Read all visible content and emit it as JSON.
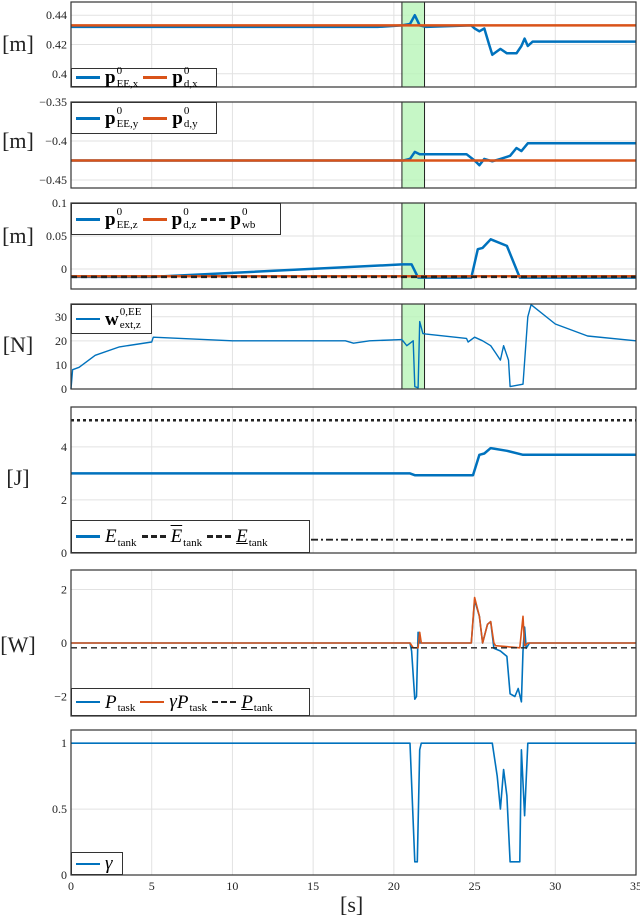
{
  "chart_data": {
    "type": "line",
    "xlabel": "[s]",
    "xlim": [
      0,
      35
    ],
    "xticks": [
      0,
      5,
      10,
      15,
      20,
      25,
      30,
      35
    ],
    "grid": true,
    "highlight_interval": [
      20.5,
      21.9
    ],
    "highlight_color": "#b8f5b8",
    "colors": {
      "blue": "#0072BD",
      "red": "#D95319",
      "black": "#222222"
    },
    "panels": [
      {
        "ylabel": "[m]",
        "ylim": [
          0.391,
          0.449
        ],
        "yticks": [
          0.4,
          0.42,
          0.44
        ],
        "ytick_labels": [
          "0.4",
          "0.42",
          "0.44"
        ],
        "highlight": true,
        "legend_placement": "bottom-left",
        "series": [
          {
            "sym": "p",
            "sup": "0",
            "sub": "EE,x",
            "style": "bold",
            "color": "#0072BD",
            "dash": "solid",
            "width": 2.5,
            "points": [
              [
                0,
                0.432
              ],
              [
                19,
                0.432
              ],
              [
                20.5,
                0.433
              ],
              [
                21,
                0.434
              ],
              [
                21.3,
                0.44
              ],
              [
                21.6,
                0.433
              ],
              [
                22,
                0.432
              ],
              [
                24.8,
                0.433
              ],
              [
                25,
                0.431
              ],
              [
                25.3,
                0.429
              ],
              [
                25.6,
                0.431
              ],
              [
                25.9,
                0.42
              ],
              [
                26.1,
                0.413
              ],
              [
                26.6,
                0.417
              ],
              [
                27,
                0.414
              ],
              [
                27.6,
                0.414
              ],
              [
                27.9,
                0.419
              ],
              [
                28.1,
                0.424
              ],
              [
                28.3,
                0.419
              ],
              [
                28.6,
                0.422
              ],
              [
                35,
                0.422
              ]
            ]
          },
          {
            "sym": "p",
            "sup": "0",
            "sub": "d,x",
            "style": "bold",
            "color": "#D95319",
            "dash": "solid",
            "width": 2.5,
            "points": [
              [
                0,
                0.433
              ],
              [
                35,
                0.433
              ]
            ]
          }
        ]
      },
      {
        "ylabel": "[m]",
        "ylim": [
          -0.4603,
          -0.35
        ],
        "yticks": [
          -0.45,
          -0.4,
          -0.35
        ],
        "ytick_labels": [
          "−0.45",
          "−0.4",
          "−0.35"
        ],
        "highlight": true,
        "legend_placement": "top-left",
        "series": [
          {
            "sym": "p",
            "sup": "0",
            "sub": "EE,y",
            "style": "bold",
            "color": "#0072BD",
            "dash": "solid",
            "width": 2.5,
            "points": [
              [
                0,
                -0.425
              ],
              [
                20.6,
                -0.425
              ],
              [
                21,
                -0.423
              ],
              [
                21.3,
                -0.414
              ],
              [
                21.6,
                -0.417
              ],
              [
                24.5,
                -0.417
              ],
              [
                25,
                -0.425
              ],
              [
                25.3,
                -0.431
              ],
              [
                25.6,
                -0.423
              ],
              [
                26.1,
                -0.426
              ],
              [
                26.6,
                -0.423
              ],
              [
                27.2,
                -0.419
              ],
              [
                27.6,
                -0.409
              ],
              [
                27.9,
                -0.413
              ],
              [
                28.3,
                -0.403
              ],
              [
                35,
                -0.403
              ]
            ]
          },
          {
            "sym": "p",
            "sup": "0",
            "sub": "d,y",
            "style": "bold",
            "color": "#D95319",
            "dash": "solid",
            "width": 2.5,
            "points": [
              [
                0,
                -0.425
              ],
              [
                35,
                -0.425
              ]
            ]
          }
        ]
      },
      {
        "ylabel": "[m]",
        "ylim": [
          -0.0303,
          0.1
        ],
        "yticks": [
          0,
          0.05,
          0.1
        ],
        "ytick_labels": [
          "0",
          "0.05",
          "0.1"
        ],
        "highlight": true,
        "legend_placement": "top-left",
        "series": [
          {
            "sym": "p",
            "sup": "0",
            "sub": "EE,z",
            "style": "bold",
            "color": "#0072BD",
            "dash": "solid",
            "width": 2.5,
            "points": [
              [
                0,
                -0.012
              ],
              [
                5,
                -0.012
              ],
              [
                20.5,
                0.007
              ],
              [
                21.1,
                0.007
              ],
              [
                21.5,
                -0.013
              ],
              [
                24.8,
                -0.013
              ],
              [
                25.2,
                0.03
              ],
              [
                25.5,
                0.032
              ],
              [
                26,
                0.045
              ],
              [
                27,
                0.035
              ],
              [
                27.8,
                -0.013
              ],
              [
                35,
                -0.013
              ]
            ]
          },
          {
            "sym": "p",
            "sup": "0",
            "sub": "d,z",
            "style": "bold",
            "color": "#D95319",
            "dash": "solid",
            "width": 2.5,
            "points": [
              [
                0,
                -0.011
              ],
              [
                35,
                -0.011
              ]
            ]
          },
          {
            "sym": "p",
            "sup": "0",
            "sub": "wb",
            "style": "bold",
            "color": "#222222",
            "dash": "dashed",
            "width": 2.5,
            "points": [
              [
                0,
                -0.012
              ],
              [
                35,
                -0.012
              ]
            ]
          }
        ]
      },
      {
        "ylabel": "[N]",
        "ylim": [
          0,
          35.3
        ],
        "yticks": [
          0,
          10,
          20,
          30
        ],
        "ytick_labels": [
          "0",
          "10",
          "20",
          "30"
        ],
        "highlight": true,
        "legend_placement": "top-left",
        "series": [
          {
            "sym": "w",
            "sup": "0,EE",
            "sub": "ext,z",
            "style": "bold",
            "color": "#0072BD",
            "dash": "solid",
            "width": 1.4,
            "points": [
              [
                0,
                0
              ],
              [
                0.1,
                8
              ],
              [
                0.5,
                9
              ],
              [
                1.5,
                14
              ],
              [
                3,
                17.5
              ],
              [
                5,
                19.5
              ],
              [
                5.1,
                21.5
              ],
              [
                10,
                20
              ],
              [
                17,
                20
              ],
              [
                17.5,
                19
              ],
              [
                18.5,
                20
              ],
              [
                20.5,
                20.5
              ],
              [
                20.8,
                18
              ],
              [
                21.2,
                20
              ],
              [
                21.3,
                1
              ],
              [
                21.5,
                0.5
              ],
              [
                21.6,
                28
              ],
              [
                21.8,
                23
              ],
              [
                22,
                22.8
              ],
              [
                24.5,
                21
              ],
              [
                24.6,
                19.5
              ],
              [
                25,
                21.5
              ],
              [
                25.5,
                20
              ],
              [
                26,
                18
              ],
              [
                26.3,
                15
              ],
              [
                26.6,
                12
              ],
              [
                26.8,
                18
              ],
              [
                27.1,
                12
              ],
              [
                27.2,
                1
              ],
              [
                28,
                2
              ],
              [
                28.3,
                30
              ],
              [
                28.5,
                35
              ],
              [
                30,
                27
              ],
              [
                32,
                22
              ],
              [
                35,
                20
              ]
            ]
          }
        ]
      },
      {
        "ylabel": "[J]",
        "ylim": [
          0,
          5.5
        ],
        "yticks": [
          0,
          2,
          4
        ],
        "ytick_labels": [
          "0",
          "2",
          "4"
        ],
        "highlight": false,
        "legend_placement": "bottom-left",
        "series": [
          {
            "sym": "E",
            "sup": "",
            "sub": "tank",
            "style": "italic",
            "color": "#0072BD",
            "dash": "solid",
            "width": 2.5,
            "points": [
              [
                0,
                3
              ],
              [
                21,
                3
              ],
              [
                21.3,
                2.93
              ],
              [
                24.9,
                2.93
              ],
              [
                25.3,
                3.7
              ],
              [
                25.6,
                3.75
              ],
              [
                26,
                3.95
              ],
              [
                27,
                3.85
              ],
              [
                28,
                3.7
              ],
              [
                35,
                3.7
              ]
            ]
          },
          {
            "sym": "E",
            "sup": "",
            "sub": "tank",
            "style": "italic overline",
            "color": "#222222",
            "dash": "dotted",
            "width": 2.5,
            "points": [
              [
                0,
                5
              ],
              [
                35,
                5
              ]
            ]
          },
          {
            "sym": "E",
            "sup": "",
            "sub": "tank",
            "style": "italic underline",
            "color": "#222222",
            "dash": "dashdot",
            "width": 1.8,
            "points": [
              [
                0,
                0.5
              ],
              [
                35,
                0.5
              ]
            ]
          }
        ]
      },
      {
        "ylabel": "[W]",
        "ylim": [
          -2.73,
          2.73
        ],
        "yticks": [
          -2,
          0,
          2
        ],
        "ytick_labels": [
          "−2",
          "0",
          "2"
        ],
        "highlight": false,
        "legend_placement": "bottom-left",
        "series": [
          {
            "prefix": "",
            "sym": "P",
            "sup": "",
            "sub": "task",
            "style": "italic",
            "color": "#0072BD",
            "dash": "solid",
            "width": 1.6,
            "points": [
              [
                0,
                0
              ],
              [
                21,
                0
              ],
              [
                21.1,
                -0.3
              ],
              [
                21.3,
                -2.1
              ],
              [
                21.4,
                -2
              ],
              [
                21.5,
                0.4
              ],
              [
                21.6,
                0
              ],
              [
                24.8,
                0
              ],
              [
                25,
                1.6
              ],
              [
                25.3,
                1
              ],
              [
                25.5,
                0
              ],
              [
                25.8,
                0.7
              ],
              [
                26,
                0.8
              ],
              [
                26.2,
                -0.2
              ],
              [
                26.6,
                -0.3
              ],
              [
                27,
                -0.5
              ],
              [
                27.2,
                -1.9
              ],
              [
                27.5,
                -2.0
              ],
              [
                27.7,
                -1.7
              ],
              [
                27.9,
                -2.2
              ],
              [
                28,
                -0.3
              ],
              [
                28.1,
                0.6
              ],
              [
                28.2,
                -0.2
              ],
              [
                28.4,
                0
              ],
              [
                35,
                0
              ]
            ]
          },
          {
            "prefix": "γ",
            "sym": "P",
            "sup": "",
            "sub": "task",
            "style": "italic",
            "color": "#D95319",
            "dash": "solid",
            "width": 1.6,
            "points": [
              [
                0,
                0
              ],
              [
                21,
                0
              ],
              [
                21.2,
                -0.18
              ],
              [
                21.5,
                -0.18
              ],
              [
                21.6,
                0.4
              ],
              [
                21.7,
                0
              ],
              [
                24.8,
                0
              ],
              [
                25,
                1.7
              ],
              [
                25.3,
                1
              ],
              [
                25.5,
                0
              ],
              [
                25.8,
                0.7
              ],
              [
                26,
                0.8
              ],
              [
                26.2,
                0
              ],
              [
                26.3,
                -0.1
              ],
              [
                27.8,
                -0.18
              ],
              [
                28,
                1
              ],
              [
                28.1,
                -0.1
              ],
              [
                28.3,
                0
              ],
              [
                35,
                0
              ]
            ]
          },
          {
            "prefix": "",
            "sym": "P",
            "sup": "",
            "sub": "tank",
            "style": "italic underline",
            "color": "#222222",
            "dash": "dashed",
            "width": 1.4,
            "points": [
              [
                0,
                -0.18
              ],
              [
                35,
                -0.18
              ]
            ]
          }
        ]
      },
      {
        "ylabel": "",
        "ylim": [
          0,
          1.1
        ],
        "yticks": [
          0,
          0.5,
          1
        ],
        "ytick_labels": [
          "0",
          "0.5",
          "1"
        ],
        "highlight": false,
        "legend_placement": "bottom-left",
        "show_xtick_labels": true,
        "series": [
          {
            "prefix": "",
            "sym": "γ",
            "sup": "",
            "sub": "",
            "style": "italic",
            "color": "#0072BD",
            "dash": "solid",
            "width": 1.6,
            "points": [
              [
                0,
                1
              ],
              [
                21,
                1
              ],
              [
                21.3,
                0.1
              ],
              [
                21.45,
                0.1
              ],
              [
                21.6,
                0.95
              ],
              [
                21.7,
                1
              ],
              [
                26.1,
                1
              ],
              [
                26.4,
                0.75
              ],
              [
                26.6,
                0.5
              ],
              [
                26.8,
                0.8
              ],
              [
                27,
                0.6
              ],
              [
                27.2,
                0.1
              ],
              [
                27.8,
                0.1
              ],
              [
                27.9,
                0.95
              ],
              [
                28.1,
                0.45
              ],
              [
                28.3,
                1
              ],
              [
                35,
                1
              ]
            ]
          }
        ]
      }
    ]
  }
}
